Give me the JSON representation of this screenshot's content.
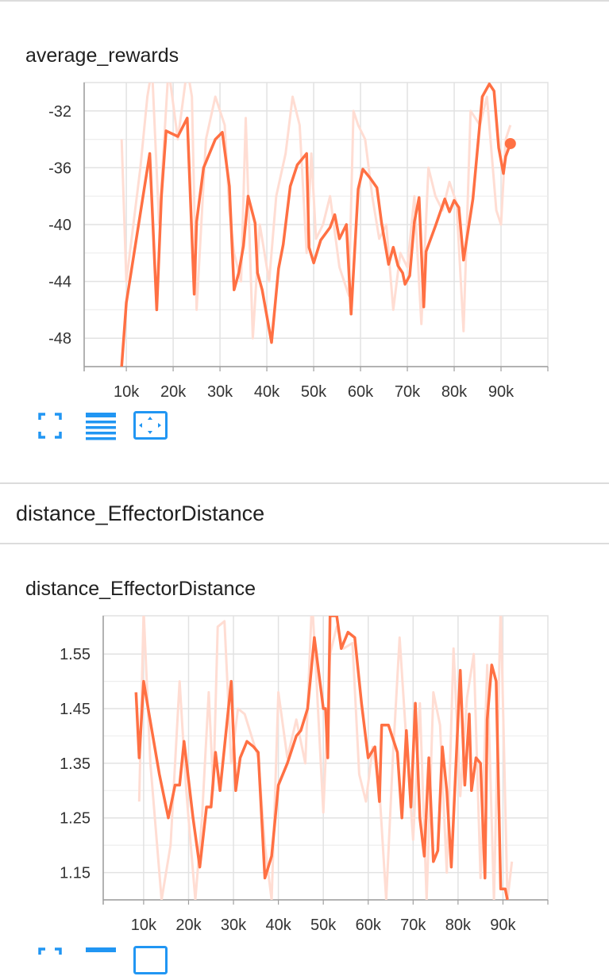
{
  "panel_group_title": "distance_EffectorDistance",
  "colors": {
    "smoothed": "#ff7043",
    "raw": "#ffddd3",
    "grid": "#e2e2e2",
    "axis": "#9e9e9e",
    "button": "#2196f3"
  },
  "toolbar_icons": [
    "fullscreen-icon",
    "data-table-icon",
    "fit-domain-icon"
  ],
  "chart_data": [
    {
      "type": "line",
      "title": "average_rewards",
      "xlabel": "",
      "ylabel": "",
      "x_ticks": [
        "10k",
        "20k",
        "30k",
        "40k",
        "50k",
        "60k",
        "70k",
        "80k",
        "90k"
      ],
      "y_ticks": [
        "-32",
        "-36",
        "-40",
        "-44",
        "-48"
      ],
      "y_tick_values": [
        -32,
        -36,
        -40,
        -44,
        -48
      ],
      "xlim": [
        1000,
        100000
      ],
      "ylim": [
        -50,
        -30
      ],
      "grid": true,
      "last_point_marker": true,
      "series": [
        {
          "role": "smoothed",
          "x": [
            9000,
            10000,
            15000,
            16500,
            17500,
            18500,
            21000,
            23000,
            24500,
            25000,
            26500,
            29000,
            30500,
            32000,
            33000,
            34000,
            35000,
            36000,
            37500,
            38000,
            39000,
            41000,
            42500,
            43500,
            45000,
            46500,
            48500,
            49000,
            50000,
            51500,
            53500,
            54500,
            55500,
            57000,
            58000,
            59500,
            60500,
            62000,
            63500,
            64500,
            66000,
            67000,
            68000,
            69000,
            69500,
            70500,
            71500,
            72500,
            73500,
            74000,
            76000,
            78000,
            79000,
            80000,
            81000,
            82000,
            84000,
            86000,
            87500,
            88500,
            89500,
            90500,
            91000,
            92000
          ],
          "y": [
            -50,
            -45.5,
            -35,
            -46,
            -38,
            -33.4,
            -33.8,
            -32.5,
            -44.9,
            -39.8,
            -36,
            -34,
            -33.5,
            -37.3,
            -44.6,
            -43.4,
            -41.5,
            -38,
            -39.9,
            -43.4,
            -44.6,
            -48.3,
            -43.1,
            -41.4,
            -37.3,
            -35.8,
            -35,
            -41.6,
            -42.7,
            -41.1,
            -40.2,
            -39.3,
            -41,
            -40,
            -46.3,
            -37.5,
            -36.1,
            -36.7,
            -37.4,
            -39.9,
            -42.8,
            -41.6,
            -42.9,
            -43.4,
            -44.2,
            -43.6,
            -39.8,
            -38.1,
            -45.8,
            -41.9,
            -40.1,
            -38.2,
            -39.1,
            -38.3,
            -38.8,
            -42.5,
            -38.2,
            -31,
            -30.1,
            -30.6,
            -34.6,
            -36.4,
            -35.2,
            -34.3
          ]
        },
        {
          "role": "raw",
          "x": [
            9000,
            10000,
            13000,
            14500,
            15500,
            17000,
            19000,
            21000,
            23000,
            24000,
            25000,
            27000,
            29000,
            31000,
            32000,
            33000,
            34500,
            35500,
            37000,
            38500,
            40500,
            42000,
            44000,
            45500,
            47000,
            48500,
            49500,
            50500,
            52000,
            53500,
            55500,
            57500,
            58500,
            59500,
            61000,
            62500,
            64000,
            65500,
            67000,
            68500,
            70000,
            71500,
            73000,
            74500,
            76000,
            77500,
            79000,
            80500,
            82000,
            83500,
            85500,
            87000,
            88000,
            89000,
            90000,
            91000,
            92000
          ],
          "y": [
            -34,
            -44,
            -36,
            -31,
            -29,
            -40,
            -29,
            -34,
            -29,
            -31,
            -46,
            -34,
            -31,
            -33,
            -39,
            -42,
            -44,
            -32.5,
            -48,
            -40,
            -44,
            -38,
            -35,
            -31,
            -33,
            -42,
            -35,
            -41,
            -40,
            -38,
            -43,
            -45,
            -32,
            -33,
            -34,
            -38,
            -41,
            -40,
            -46,
            -42,
            -43,
            -38,
            -47,
            -36,
            -38,
            -39,
            -37,
            -38.5,
            -47.5,
            -32,
            -33,
            -31,
            -35,
            -39,
            -40,
            -34,
            -33
          ]
        }
      ]
    },
    {
      "type": "line",
      "title": "distance_EffectorDistance",
      "xlabel": "",
      "ylabel": "",
      "x_ticks": [
        "10k",
        "20k",
        "30k",
        "40k",
        "50k",
        "60k",
        "70k",
        "80k",
        "90k"
      ],
      "y_ticks": [
        "1.55",
        "1.45",
        "1.35",
        "1.25",
        "1.15"
      ],
      "y_tick_values": [
        1.55,
        1.45,
        1.35,
        1.25,
        1.15
      ],
      "xlim": [
        1000,
        100000
      ],
      "ylim": [
        1.1,
        1.62
      ],
      "grid": true,
      "last_point_marker": false,
      "series": [
        {
          "role": "smoothed",
          "x": [
            8300,
            9000,
            10000,
            11000,
            13500,
            15500,
            17000,
            18000,
            19000,
            21000,
            22500,
            24000,
            25000,
            26000,
            27000,
            29500,
            30500,
            31500,
            33000,
            34500,
            35500,
            37000,
            38500,
            40000,
            42000,
            44000,
            45000,
            46500,
            48000,
            50000,
            50500,
            51000,
            51500,
            53000,
            54000,
            55500,
            57000,
            58500,
            60000,
            61500,
            62500,
            63000,
            64500,
            66500,
            67500,
            68500,
            69500,
            70500,
            71500,
            72500,
            73500,
            74500,
            75500,
            76500,
            77500,
            78500,
            79500,
            80500,
            81500,
            82500,
            83000,
            84000,
            85000,
            86000,
            86500,
            87500,
            88500,
            89500,
            90500,
            91000
          ],
          "y": [
            1.48,
            1.36,
            1.5,
            1.45,
            1.33,
            1.25,
            1.31,
            1.31,
            1.39,
            1.25,
            1.16,
            1.27,
            1.27,
            1.37,
            1.3,
            1.5,
            1.3,
            1.36,
            1.39,
            1.38,
            1.37,
            1.14,
            1.18,
            1.31,
            1.35,
            1.4,
            1.41,
            1.45,
            1.58,
            1.45,
            1.45,
            1.36,
            1.62,
            1.62,
            1.56,
            1.59,
            1.58,
            1.46,
            1.36,
            1.38,
            1.28,
            1.42,
            1.42,
            1.37,
            1.25,
            1.41,
            1.27,
            1.46,
            1.25,
            1.18,
            1.36,
            1.17,
            1.19,
            1.38,
            1.3,
            1.16,
            1.34,
            1.52,
            1.31,
            1.44,
            1.3,
            1.36,
            1.35,
            1.14,
            1.43,
            1.53,
            1.5,
            1.12,
            1.12,
            1.1
          ]
        },
        {
          "role": "raw",
          "x": [
            9000,
            10000,
            11500,
            14000,
            16000,
            18000,
            19500,
            21500,
            23000,
            24500,
            25500,
            26500,
            28000,
            29500,
            31000,
            32500,
            34000,
            35500,
            37000,
            38500,
            40000,
            42000,
            44000,
            46000,
            47500,
            48500,
            50000,
            51500,
            53000,
            54500,
            56500,
            58000,
            59500,
            61000,
            62500,
            64000,
            65500,
            67000,
            68500,
            70000,
            71500,
            73000,
            74500,
            76000,
            77500,
            79000,
            80500,
            82000,
            83500,
            85000,
            86500,
            88000,
            89500,
            91000,
            92000
          ],
          "y": [
            1.28,
            1.63,
            1.35,
            1.1,
            1.2,
            1.5,
            1.3,
            1.1,
            1.25,
            1.48,
            1.3,
            1.6,
            1.61,
            1.35,
            1.45,
            1.44,
            1.4,
            1.36,
            1.2,
            1.1,
            1.48,
            1.36,
            1.43,
            1.35,
            1.65,
            1.5,
            1.26,
            1.55,
            1.6,
            1.56,
            1.57,
            1.33,
            1.28,
            1.38,
            1.3,
            1.1,
            1.36,
            1.58,
            1.39,
            1.21,
            1.46,
            1.1,
            1.48,
            1.42,
            1.15,
            1.56,
            1.29,
            1.47,
            1.55,
            1.14,
            1.53,
            1.1,
            1.64,
            1.1,
            1.17
          ]
        }
      ]
    }
  ]
}
